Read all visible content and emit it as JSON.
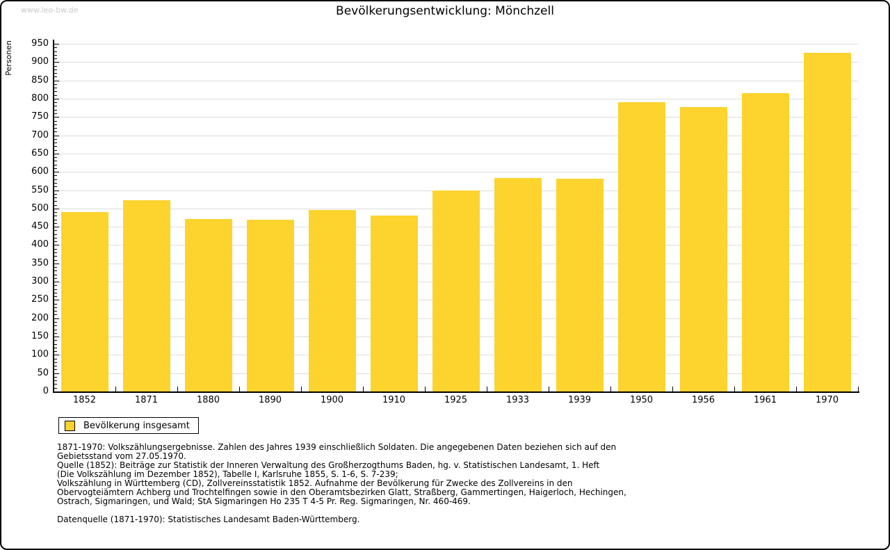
{
  "watermark": "www.leo-bw.de",
  "header": {
    "title": "Bevölkerungsentwicklung: Mönchzell"
  },
  "chart_data": {
    "type": "bar",
    "title": "Bevölkerungsentwicklung: Mönchzell",
    "xlabel": "",
    "ylabel": "Personen",
    "ylim": [
      0,
      950
    ],
    "ytick_major": 50,
    "ytick_minor": 10,
    "grid": true,
    "bar_color": "#FDD32D",
    "gridline_color": "#dcdcdc",
    "categories": [
      "1852",
      "1871",
      "1880",
      "1890",
      "1900",
      "1910",
      "1925",
      "1933",
      "1939",
      "1950",
      "1956",
      "1961",
      "1970"
    ],
    "values": [
      490,
      522,
      472,
      470,
      496,
      481,
      549,
      583,
      581,
      791,
      777,
      815,
      925
    ],
    "legend_position": "bottom-left",
    "legend_entries": [
      "Bevölkerung insgesamt"
    ]
  },
  "legend": {
    "label": "Bevölkerung insgesamt"
  },
  "footnotes": {
    "lines": [
      "1871-1970: Volkszählungsergebnisse. Zahlen des Jahres 1939 einschließlich Soldaten. Die angegebenen Daten beziehen sich auf den",
      "Gebietsstand vom 27.05.1970.",
      "Quelle (1852): Beiträge zur Statistik der Inneren Verwaltung des Großherzogthums Baden, hg. v. Statistischen Landesamt, 1. Heft",
      "(Die Volkszählung im Dezember 1852), Tabelle I, Karlsruhe 1855, S. 1-6, S. 7-239;",
      "Volkszählung in Württemberg (CD), Zollvereinsstatistik 1852. Aufnahme der Bevölkerung für Zwecke des Zollvereins in den",
      "Obervogteiämtern Achberg und Trochtelfingen sowie in den Oberamtsbezirken Glatt, Straßberg, Gammertingen, Haigerloch, Hechingen,",
      "Ostrach, Sigmaringen, und Wald; StA Sigmaringen Ho 235 T 4-5 Pr. Reg. Sigmaringen, Nr. 460-469."
    ],
    "datasource": "Datenquelle (1871-1970): Statistisches Landesamt Baden-Württemberg."
  }
}
